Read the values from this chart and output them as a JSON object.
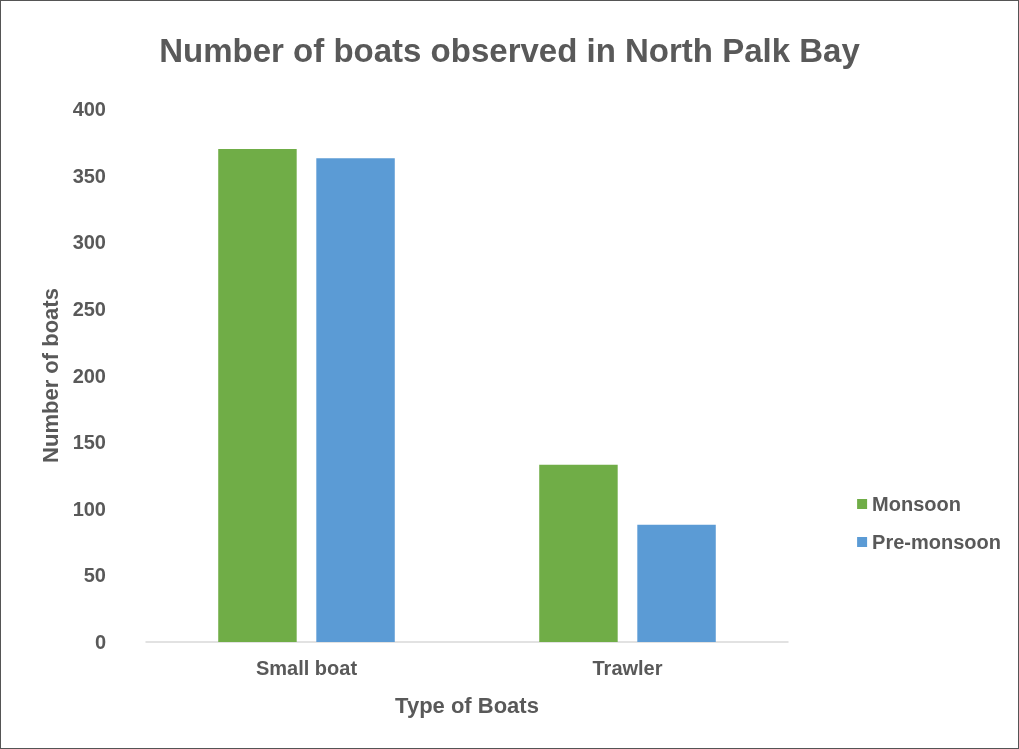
{
  "chart_data": {
    "type": "bar",
    "title": "Number of boats observed in North Palk Bay",
    "xlabel": "Type of Boats",
    "ylabel": "Number of boats",
    "categories": [
      "Small boat",
      "Trawler"
    ],
    "series": [
      {
        "name": "Monsoon",
        "color": "#70ad47",
        "values": [
          370,
          133
        ]
      },
      {
        "name": "Pre-monsoon",
        "color": "#5b9bd5",
        "values": [
          363,
          88
        ]
      }
    ],
    "ylim": [
      0,
      400
    ],
    "yticks": [
      0,
      50,
      100,
      150,
      200,
      250,
      300,
      350,
      400
    ],
    "grid": false,
    "legend": "right"
  }
}
